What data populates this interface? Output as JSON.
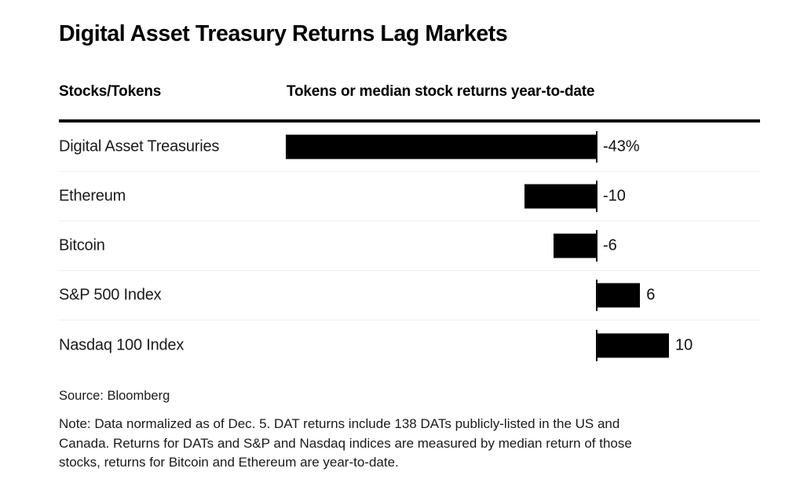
{
  "title": "Digital Asset Treasury Returns Lag Markets",
  "columns": {
    "left": "Stocks/Tokens",
    "right": "Tokens or median stock returns year-to-date"
  },
  "chart_data": {
    "type": "bar",
    "orientation": "horizontal",
    "title": "Digital Asset Treasury Returns Lag Markets",
    "xlabel": "Tokens or median stock returns year-to-date",
    "ylabel": "Stocks/Tokens",
    "categories": [
      "Digital Asset Treasuries",
      "Ethereum",
      "Bitcoin",
      "S&P 500 Index",
      "Nasdaq 100 Index"
    ],
    "values": [
      -43,
      -10,
      -6,
      6,
      10
    ],
    "value_labels": [
      "-43%",
      "-10",
      "-6",
      "6",
      "10"
    ],
    "xlim": [
      -45,
      23
    ],
    "bar_color": "#000000",
    "zero_baseline": true,
    "grid": false,
    "legend": false
  },
  "footer": {
    "source": "Source: Bloomberg",
    "note_lines": [
      "Note: Data normalized as of Dec. 5. DAT returns include 138 DATs publicly-listed in the US and",
      "Canada. Returns for DATs and S&P and Nasdaq indices are measured by median return of those",
      "stocks, returns for Bitcoin and Ethereum are year-to-date."
    ]
  }
}
